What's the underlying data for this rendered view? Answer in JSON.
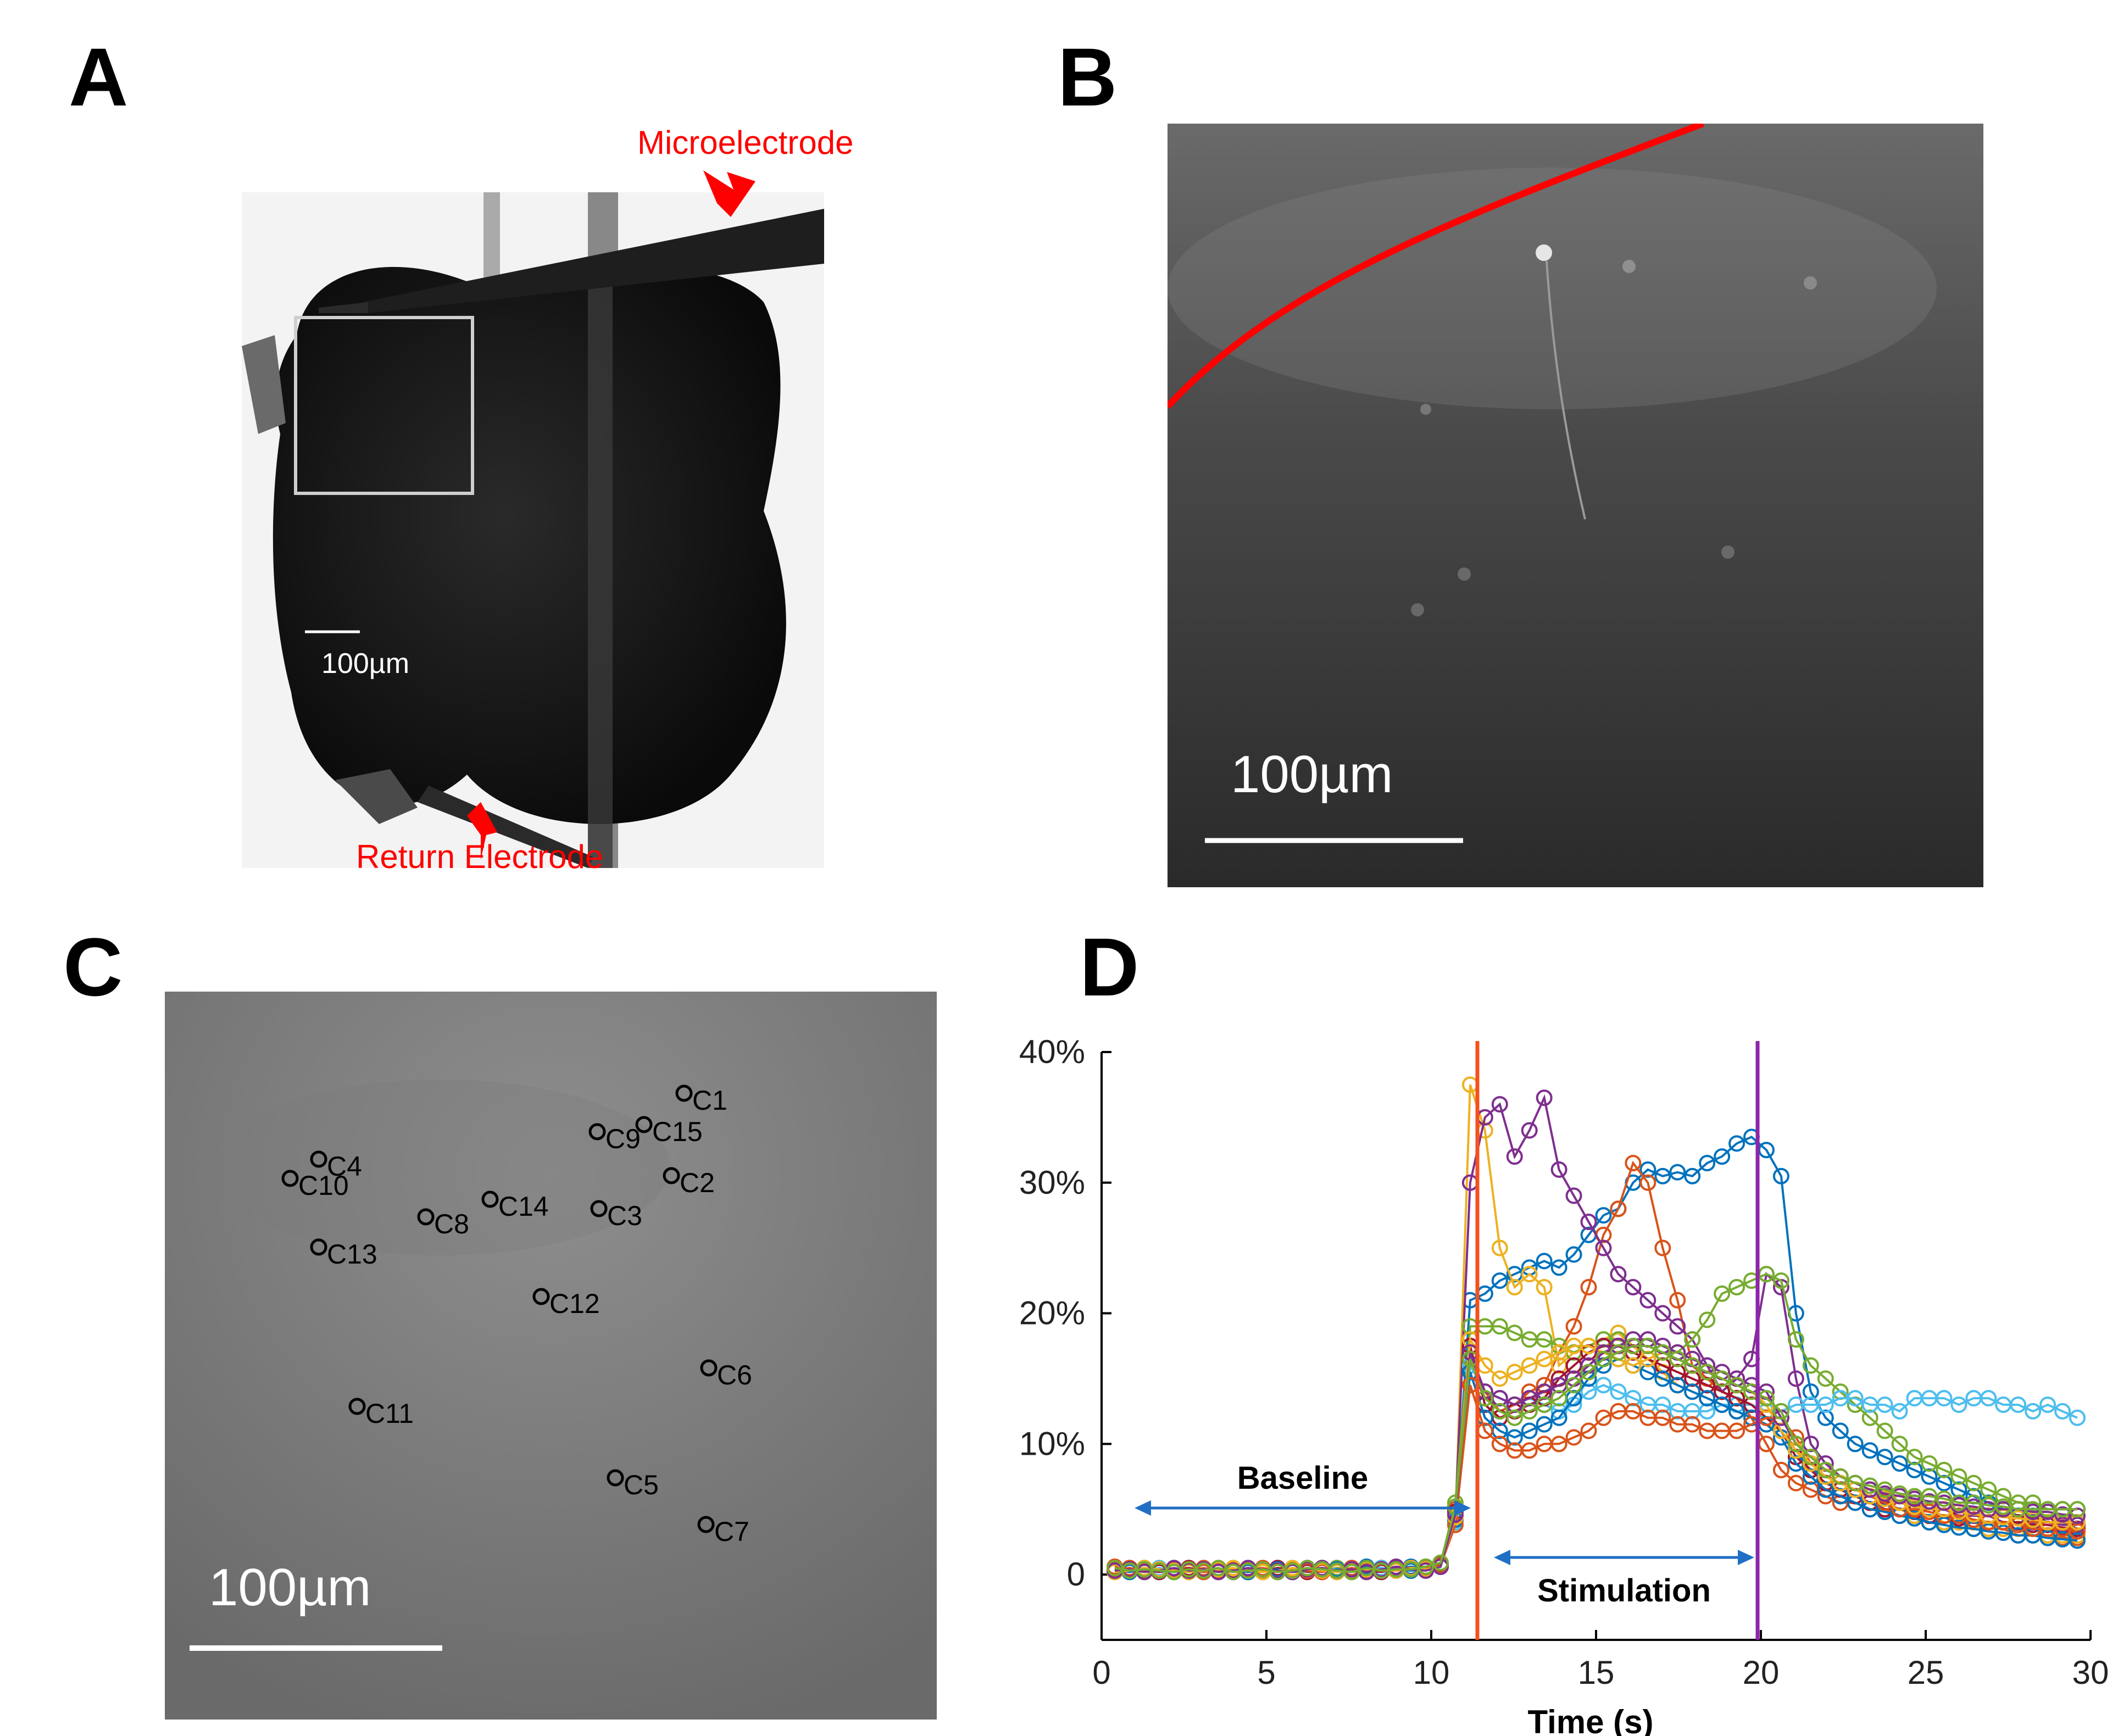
{
  "colors": {
    "annotation_red": "#ff0000",
    "arrow_blue": "#1f6fc5",
    "stim_start_line": "#f4511e",
    "stim_end_line": "#8e24aa"
  },
  "panels": {
    "a": {
      "letter": "A",
      "microelectrode_label": "Microelectrode",
      "return_label": "Return Electrode",
      "scale_label": "100µm"
    },
    "b": {
      "letter": "B",
      "scale_label": "100µm"
    },
    "c": {
      "letter": "C",
      "scale_label": "100µm",
      "cells": [
        "C1",
        "C2",
        "C3",
        "C4",
        "C5",
        "C6",
        "C7",
        "C8",
        "C9",
        "C10",
        "C11",
        "C12",
        "C13",
        "C14",
        "C15"
      ]
    },
    "d": {
      "letter": "D",
      "baseline_label": "Baseline",
      "stimulation_label": "Stimulation"
    }
  },
  "chart_data": {
    "type": "line",
    "xlabel": "Time (s)",
    "ylabel": "",
    "xlim": [
      0,
      30
    ],
    "ylim": [
      -5,
      40
    ],
    "xticks": [
      "0",
      "5",
      "10",
      "15",
      "20",
      "25",
      "30"
    ],
    "yticks": [
      "0",
      "10%",
      "20%",
      "30%",
      "40%"
    ],
    "stim_start": 11.4,
    "stim_end": 19.9,
    "baseline_arrow": [
      1,
      11.2
    ],
    "stim_arrow": [
      11.9,
      19.8
    ],
    "series_colors": [
      "#0072BD",
      "#D95319",
      "#EDB120",
      "#7E2F8E",
      "#77AC30",
      "#4DBEEE",
      "#A2142F"
    ],
    "series": [
      {
        "values": [
          0.5,
          0.3,
          0.4,
          0.2,
          0.3,
          0.2,
          0.4,
          0.3,
          0.2,
          0.3,
          0.4,
          0.2,
          0.3,
          0.5,
          0.3,
          0.4,
          0.3,
          0.6,
          0.5,
          0.4,
          0.6,
          0.5,
          0.8,
          4.5,
          21.0,
          21.5,
          22.5,
          23.0,
          23.5,
          24.0,
          23.5,
          24.5,
          26.0,
          27.5,
          28.0,
          30.0,
          31.0,
          30.5,
          30.8,
          30.5,
          31.5,
          32.0,
          33.0,
          33.5,
          32.5,
          30.5,
          20.0,
          14.0,
          12.0,
          11.0,
          10.0,
          9.5,
          9.0,
          8.5,
          8.0,
          7.5,
          7.0,
          6.5,
          6.0,
          5.5,
          5.0,
          4.5,
          4.5,
          4.0,
          4.0,
          3.5
        ]
      },
      {
        "values": [
          0.6,
          0.4,
          0.5,
          0.3,
          0.4,
          0.3,
          0.5,
          0.3,
          0.2,
          0.4,
          0.5,
          0.3,
          0.4,
          0.4,
          0.3,
          0.5,
          0.4,
          0.5,
          0.4,
          0.5,
          0.5,
          0.6,
          0.9,
          5.0,
          17.0,
          14.0,
          12.5,
          13.0,
          14.0,
          14.5,
          17.0,
          19.0,
          22.0,
          26.0,
          28.0,
          31.5,
          30.0,
          25.0,
          21.0,
          16.0,
          15.0,
          14.0,
          13.5,
          12.0,
          10.0,
          8.0,
          7.0,
          6.5,
          6.0,
          5.5,
          5.5,
          5.0,
          5.0,
          4.5,
          4.5,
          4.0,
          4.0,
          4.0,
          3.5,
          3.5,
          3.5,
          3.0,
          3.0,
          3.0,
          2.8,
          2.8
        ]
      },
      {
        "values": [
          0.4,
          0.3,
          0.2,
          0.3,
          0.4,
          0.2,
          0.3,
          0.2,
          0.3,
          0.4,
          0.2,
          0.3,
          0.2,
          0.3,
          0.4,
          0.3,
          0.2,
          0.4,
          0.3,
          0.5,
          0.4,
          0.5,
          0.7,
          4.0,
          37.5,
          34.0,
          25.0,
          22.0,
          23.0,
          22.0,
          16.0,
          17.0,
          17.5,
          18.0,
          18.5,
          17.5,
          16.5,
          15.5,
          14.5,
          14.0,
          13.5,
          13.0,
          12.5,
          12.0,
          11.5,
          11.0,
          9.5,
          8.0,
          7.0,
          6.5,
          6.0,
          5.5,
          5.0,
          5.0,
          4.5,
          4.5,
          4.0,
          4.0,
          4.0,
          3.5,
          3.5,
          3.5,
          3.0,
          3.0,
          3.0,
          3.0
        ]
      },
      {
        "values": [
          0.3,
          0.5,
          0.3,
          0.4,
          0.2,
          0.3,
          0.4,
          0.2,
          0.3,
          0.2,
          0.4,
          0.3,
          0.2,
          0.3,
          0.4,
          0.2,
          0.5,
          0.3,
          0.4,
          0.6,
          0.5,
          0.4,
          0.6,
          4.5,
          30.0,
          35.0,
          36.0,
          32.0,
          34.0,
          36.5,
          31.0,
          29.0,
          27.0,
          25.0,
          23.0,
          22.0,
          21.0,
          20.0,
          19.0,
          18.0,
          16.0,
          14.0,
          15.0,
          16.5,
          23.0,
          22.0,
          15.0,
          10.0,
          8.5,
          7.5,
          7.0,
          6.5,
          6.0,
          5.5,
          5.5,
          5.0,
          5.0,
          4.5,
          4.5,
          4.5,
          4.0,
          4.0,
          4.0,
          4.0,
          3.8,
          3.8
        ]
      },
      {
        "values": [
          0.2,
          0.4,
          0.5,
          0.3,
          0.2,
          0.4,
          0.3,
          0.4,
          0.5,
          0.3,
          0.2,
          0.4,
          0.3,
          0.4,
          0.3,
          0.5,
          0.2,
          0.4,
          0.5,
          0.3,
          0.5,
          0.6,
          0.8,
          5.5,
          19.0,
          19.0,
          19.0,
          18.5,
          18.0,
          18.0,
          17.5,
          17.0,
          17.5,
          18.0,
          18.0,
          17.5,
          17.5,
          17.0,
          17.0,
          18.0,
          19.5,
          21.5,
          22.0,
          22.5,
          23.0,
          22.5,
          18.0,
          16.0,
          15.0,
          14.0,
          13.0,
          12.0,
          11.0,
          10.0,
          9.0,
          8.5,
          8.0,
          7.5,
          7.0,
          6.5,
          6.0,
          5.5,
          5.5,
          5.0,
          5.0,
          5.0
        ]
      },
      {
        "values": [
          0.4,
          0.2,
          0.3,
          0.5,
          0.3,
          0.2,
          0.4,
          0.3,
          0.2,
          0.5,
          0.3,
          0.4,
          0.2,
          0.3,
          0.5,
          0.4,
          0.3,
          0.4,
          0.5,
          0.4,
          0.3,
          0.5,
          0.7,
          4.0,
          16.0,
          14.0,
          13.5,
          13.0,
          13.5,
          13.0,
          12.5,
          13.0,
          14.0,
          14.5,
          14.0,
          13.5,
          13.0,
          13.0,
          12.5,
          12.5,
          12.5,
          13.0,
          13.0,
          13.0,
          12.5,
          12.5,
          13.0,
          13.0,
          13.0,
          13.5,
          13.5,
          13.0,
          13.0,
          12.5,
          13.5,
          13.5,
          13.5,
          13.0,
          13.5,
          13.5,
          13.0,
          13.0,
          12.5,
          13.0,
          12.5,
          12.0
        ]
      },
      {
        "values": [
          0.5,
          0.4,
          0.3,
          0.2,
          0.4,
          0.5,
          0.3,
          0.3,
          0.4,
          0.2,
          0.3,
          0.5,
          0.4,
          0.2,
          0.3,
          0.3,
          0.4,
          0.3,
          0.2,
          0.4,
          0.5,
          0.4,
          0.8,
          4.8,
          17.5,
          13.0,
          12.0,
          12.5,
          13.0,
          13.5,
          15.0,
          16.0,
          17.0,
          17.5,
          17.5,
          17.0,
          16.5,
          16.0,
          15.5,
          15.0,
          14.5,
          14.0,
          13.5,
          13.0,
          12.0,
          11.0,
          9.0,
          8.0,
          7.0,
          6.5,
          6.0,
          5.5,
          5.0,
          5.0,
          4.8,
          4.5,
          4.5,
          4.3,
          4.2,
          4.0,
          4.0,
          4.0,
          3.8,
          3.8,
          3.6,
          3.5
        ]
      },
      {
        "values": [
          0.3,
          0.2,
          0.4,
          0.3,
          0.2,
          0.3,
          0.2,
          0.4,
          0.3,
          0.2,
          0.3,
          0.4,
          0.2,
          0.3,
          0.2,
          0.4,
          0.3,
          0.5,
          0.3,
          0.4,
          0.3,
          0.4,
          0.6,
          4.2,
          15.5,
          12.0,
          11.0,
          10.5,
          11.0,
          11.5,
          12.0,
          13.5,
          15.0,
          16.0,
          16.5,
          16.0,
          15.5,
          15.0,
          14.5,
          14.0,
          13.5,
          13.0,
          12.5,
          12.0,
          11.5,
          10.5,
          8.5,
          7.5,
          6.5,
          6.0,
          5.5,
          5.0,
          4.8,
          4.5,
          4.3,
          4.0,
          3.8,
          3.6,
          3.5,
          3.3,
          3.2,
          3.0,
          3.0,
          2.8,
          2.7,
          2.6
        ]
      },
      {
        "values": [
          0.4,
          0.5,
          0.3,
          0.4,
          0.3,
          0.4,
          0.2,
          0.3,
          0.4,
          0.4,
          0.3,
          0.2,
          0.4,
          0.3,
          0.2,
          0.3,
          0.5,
          0.3,
          0.4,
          0.3,
          0.4,
          0.5,
          0.7,
          3.8,
          14.5,
          11.0,
          10.0,
          9.5,
          9.5,
          10.0,
          10.0,
          10.5,
          11.0,
          12.0,
          12.5,
          12.5,
          12.0,
          12.0,
          11.5,
          11.5,
          11.0,
          11.0,
          11.0,
          11.5,
          12.0,
          12.0,
          10.5,
          8.5,
          7.5,
          7.0,
          6.5,
          6.0,
          5.5,
          5.0,
          5.0,
          4.8,
          4.5,
          4.5,
          4.2,
          4.0,
          4.0,
          3.8,
          3.5,
          3.5,
          3.5,
          3.3
        ]
      },
      {
        "values": [
          0.2,
          0.3,
          0.5,
          0.4,
          0.3,
          0.2,
          0.3,
          0.4,
          0.5,
          0.3,
          0.2,
          0.3,
          0.5,
          0.4,
          0.3,
          0.2,
          0.3,
          0.4,
          0.3,
          0.3,
          0.5,
          0.4,
          0.6,
          4.4,
          18.0,
          16.0,
          15.0,
          15.5,
          16.0,
          16.5,
          17.0,
          17.5,
          17.5,
          17.0,
          16.5,
          16.0,
          16.5,
          17.0,
          16.5,
          16.0,
          15.5,
          15.0,
          14.5,
          14.0,
          13.0,
          11.0,
          9.5,
          8.5,
          7.5,
          7.0,
          6.5,
          6.0,
          5.8,
          5.5,
          5.2,
          5.0,
          5.0,
          4.8,
          4.6,
          4.5,
          4.4,
          4.3,
          4.2,
          4.0,
          4.0,
          4.0
        ]
      },
      {
        "values": [
          0.3,
          0.4,
          0.2,
          0.3,
          0.5,
          0.3,
          0.4,
          0.2,
          0.3,
          0.5,
          0.4,
          0.3,
          0.2,
          0.4,
          0.5,
          0.3,
          0.4,
          0.2,
          0.4,
          0.5,
          0.4,
          0.3,
          0.6,
          4.6,
          17.0,
          14.0,
          13.5,
          13.0,
          13.5,
          14.0,
          14.5,
          15.0,
          16.0,
          17.0,
          17.5,
          18.0,
          18.0,
          17.5,
          17.0,
          16.5,
          16.0,
          15.5,
          15.0,
          14.5,
          14.0,
          12.0,
          10.0,
          9.0,
          8.0,
          7.5,
          7.0,
          6.5,
          6.2,
          6.0,
          5.8,
          5.6,
          5.5,
          5.3,
          5.2,
          5.0,
          5.0,
          5.0,
          4.8,
          4.8,
          4.6,
          4.5
        ]
      },
      {
        "values": [
          0.5,
          0.3,
          0.4,
          0.3,
          0.2,
          0.4,
          0.3,
          0.5,
          0.2,
          0.3,
          0.4,
          0.2,
          0.3,
          0.5,
          0.4,
          0.3,
          0.2,
          0.5,
          0.3,
          0.4,
          0.4,
          0.6,
          0.9,
          5.2,
          16.5,
          13.5,
          12.5,
          12.0,
          12.5,
          13.0,
          13.5,
          14.5,
          15.5,
          16.5,
          17.0,
          17.5,
          17.5,
          17.0,
          16.5,
          16.0,
          15.5,
          15.0,
          14.5,
          14.0,
          13.5,
          12.5,
          10.0,
          9.0,
          8.0,
          7.5,
          7.0,
          6.8,
          6.5,
          6.2,
          6.0,
          6.0,
          5.8,
          5.5,
          5.5,
          5.3,
          5.2,
          5.0,
          5.0,
          5.0,
          5.0,
          5.0
        ]
      }
    ]
  }
}
